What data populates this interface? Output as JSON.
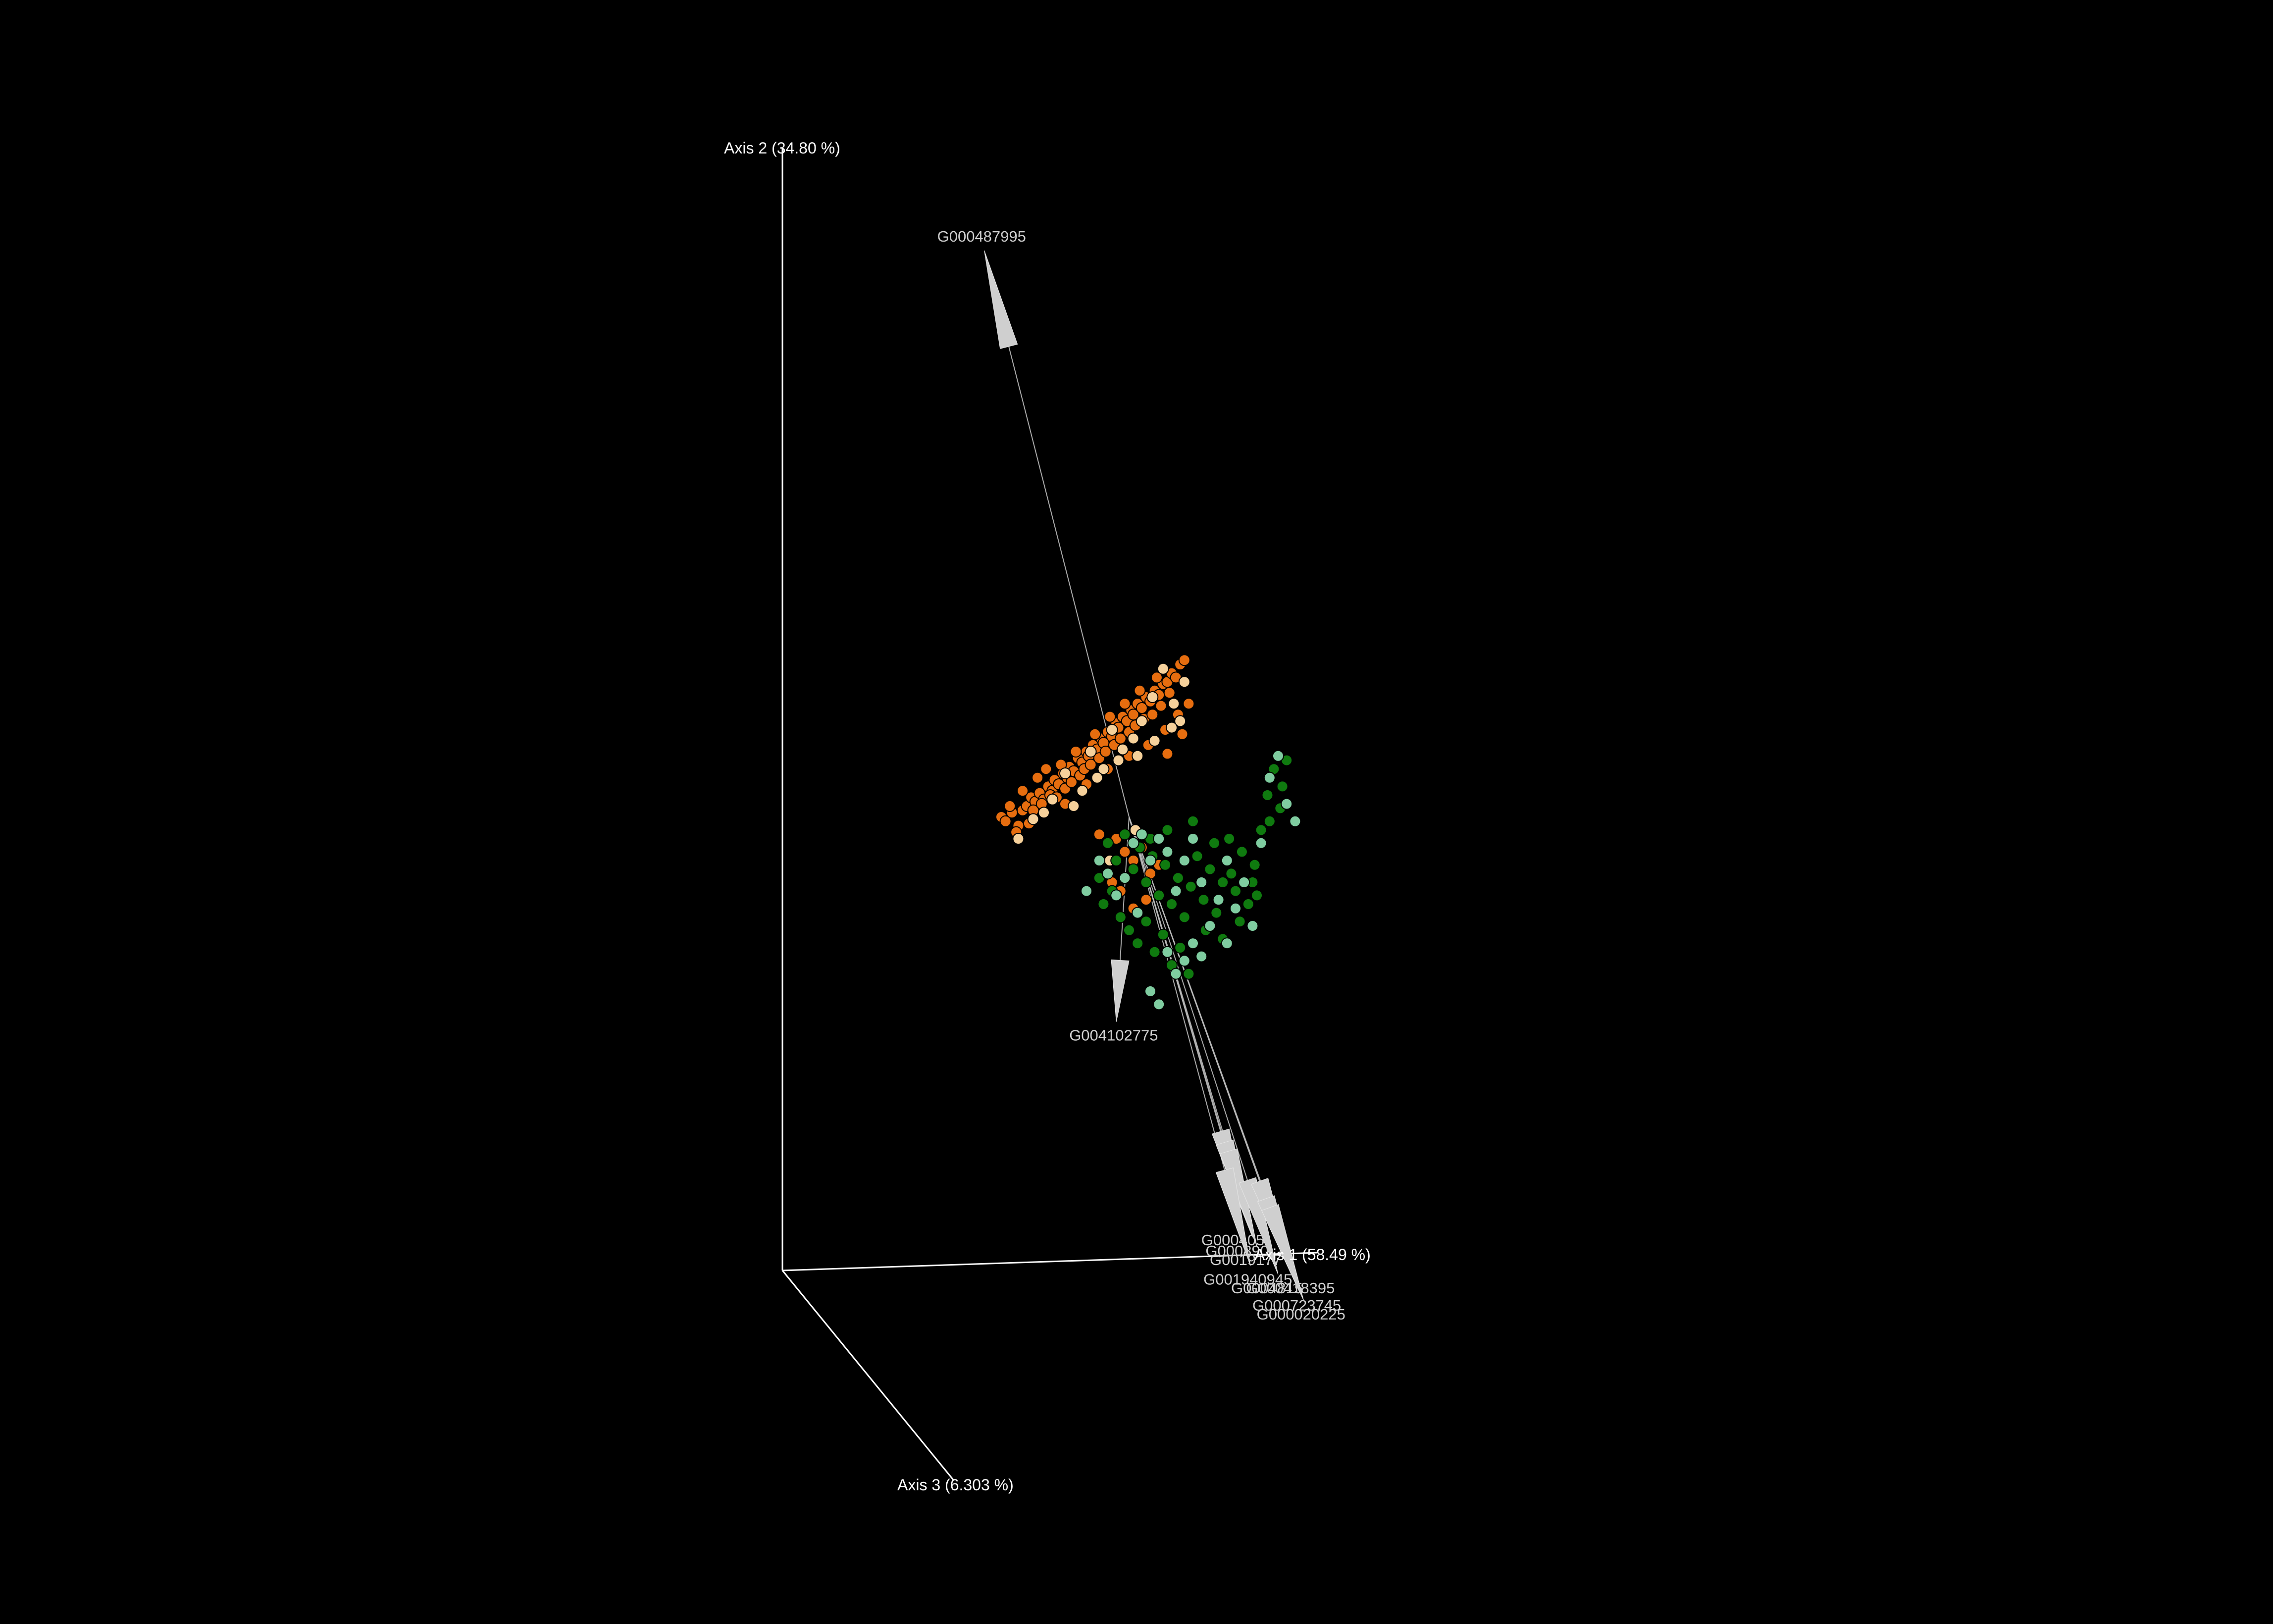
{
  "chart_data": {
    "type": "scatter",
    "subtype": "3d-pcoa-biplot",
    "title": "",
    "background": "#000000",
    "axes": {
      "x": "Axis 1 (58.49 %)",
      "y": "Axis 2 (34.80 %)",
      "z": "Axis 3 (6.303 %)"
    },
    "series": [
      {
        "color": "#e66d0f",
        "points": [
          [
            -0.6,
            0.0
          ],
          [
            -0.58,
            -0.02
          ],
          [
            -0.55,
            0.02
          ],
          [
            -0.52,
            -0.04
          ],
          [
            -0.5,
            0.03
          ],
          [
            -0.48,
            0.05
          ],
          [
            -0.46,
            0.09
          ],
          [
            -0.44,
            0.07
          ],
          [
            -0.42,
            0.11
          ],
          [
            -0.4,
            0.08
          ],
          [
            -0.38,
            0.14
          ],
          [
            -0.36,
            0.12
          ],
          [
            -0.35,
            0.17
          ],
          [
            -0.33,
            0.15
          ],
          [
            -0.31,
            0.2
          ],
          [
            -0.29,
            0.18
          ],
          [
            -0.28,
            0.23
          ],
          [
            -0.26,
            0.21
          ],
          [
            -0.24,
            0.27
          ],
          [
            -0.22,
            0.25
          ],
          [
            -0.2,
            0.3
          ],
          [
            -0.19,
            0.28
          ],
          [
            -0.17,
            0.33
          ],
          [
            -0.15,
            0.31
          ],
          [
            -0.13,
            0.36
          ],
          [
            -0.12,
            0.34
          ],
          [
            -0.1,
            0.39
          ],
          [
            -0.08,
            0.37
          ],
          [
            -0.06,
            0.43
          ],
          [
            -0.05,
            0.41
          ],
          [
            -0.03,
            0.46
          ],
          [
            -0.01,
            0.44
          ],
          [
            0.01,
            0.49
          ],
          [
            0.02,
            0.47
          ],
          [
            0.04,
            0.52
          ],
          [
            0.06,
            0.5
          ],
          [
            0.08,
            0.55
          ],
          [
            0.1,
            0.53
          ],
          [
            0.12,
            0.58
          ],
          [
            0.14,
            0.56
          ],
          [
            0.16,
            0.61
          ],
          [
            0.18,
            0.62
          ],
          [
            0.2,
            0.66
          ],
          [
            0.22,
            0.64
          ],
          [
            0.24,
            0.7
          ],
          [
            0.26,
            0.72
          ],
          [
            -0.45,
            0.03
          ],
          [
            -0.41,
            0.06
          ],
          [
            -0.37,
            0.1
          ],
          [
            -0.34,
            0.09
          ],
          [
            -0.3,
            0.13
          ],
          [
            -0.27,
            0.16
          ],
          [
            -0.23,
            0.19
          ],
          [
            -0.21,
            0.22
          ],
          [
            -0.18,
            0.24
          ],
          [
            -0.14,
            0.27
          ],
          [
            -0.11,
            0.3
          ],
          [
            -0.07,
            0.33
          ],
          [
            -0.04,
            0.36
          ],
          [
            0.0,
            0.39
          ],
          [
            0.03,
            0.42
          ],
          [
            0.07,
            0.45
          ],
          [
            0.11,
            0.47
          ],
          [
            0.15,
            0.51
          ],
          [
            -0.32,
            0.24
          ],
          [
            -0.25,
            0.3
          ],
          [
            -0.16,
            0.38
          ],
          [
            -0.09,
            0.46
          ],
          [
            -0.02,
            0.52
          ],
          [
            0.05,
            0.58
          ],
          [
            0.13,
            0.64
          ],
          [
            0.19,
            0.57
          ],
          [
            -0.5,
            0.12
          ],
          [
            -0.43,
            0.18
          ],
          [
            -0.39,
            0.22
          ],
          [
            -0.3,
            0.06
          ],
          [
            -0.2,
            0.15
          ],
          [
            -0.1,
            0.22
          ],
          [
            0.0,
            0.28
          ],
          [
            0.09,
            0.33
          ],
          [
            0.17,
            0.4
          ],
          [
            0.23,
            0.47
          ],
          [
            0.28,
            0.52
          ],
          [
            0.25,
            0.38
          ],
          [
            0.18,
            0.29
          ],
          [
            -0.14,
            -0.08
          ],
          [
            -0.1,
            -0.12
          ],
          [
            -0.06,
            -0.1
          ],
          [
            -0.02,
            -0.16
          ],
          [
            0.02,
            -0.2
          ],
          [
            0.06,
            -0.14
          ],
          [
            0.1,
            -0.26
          ],
          [
            0.14,
            -0.22
          ],
          [
            -0.08,
            -0.3
          ],
          [
            -0.04,
            -0.34
          ],
          [
            0.02,
            -0.42
          ],
          [
            0.08,
            -0.38
          ],
          [
            -0.56,
            0.05
          ],
          [
            -0.53,
            -0.07
          ],
          [
            -0.47,
            -0.03
          ]
        ]
      },
      {
        "color": "#f6d19b",
        "points": [
          [
            -0.36,
            0.08
          ],
          [
            -0.3,
            0.2
          ],
          [
            -0.22,
            0.12
          ],
          [
            -0.18,
            0.3
          ],
          [
            -0.12,
            0.22
          ],
          [
            -0.08,
            0.4
          ],
          [
            -0.03,
            0.31
          ],
          [
            0.02,
            0.36
          ],
          [
            0.06,
            0.44
          ],
          [
            0.11,
            0.55
          ],
          [
            0.16,
            0.68
          ],
          [
            0.21,
            0.52
          ],
          [
            0.26,
            0.62
          ],
          [
            0.24,
            0.44
          ],
          [
            -0.45,
            -0.01
          ],
          [
            -0.4,
            0.02
          ],
          [
            -0.26,
            0.05
          ],
          [
            -0.15,
            0.18
          ],
          [
            -0.05,
            0.26
          ],
          [
            0.04,
            0.28
          ],
          [
            0.12,
            0.35
          ],
          [
            0.2,
            0.41
          ],
          [
            -0.52,
            -0.1
          ],
          [
            -0.09,
            -0.2
          ],
          [
            0.03,
            -0.06
          ]
        ]
      },
      {
        "color": "#0f7a0f",
        "points": [
          [
            -0.1,
            -0.12
          ],
          [
            -0.06,
            -0.2
          ],
          [
            -0.02,
            -0.08
          ],
          [
            0.02,
            -0.24
          ],
          [
            0.05,
            -0.14
          ],
          [
            0.08,
            -0.3
          ],
          [
            0.11,
            -0.18
          ],
          [
            0.14,
            -0.36
          ],
          [
            0.17,
            -0.22
          ],
          [
            0.2,
            -0.4
          ],
          [
            0.23,
            -0.28
          ],
          [
            0.26,
            -0.46
          ],
          [
            0.29,
            -0.32
          ],
          [
            0.32,
            -0.18
          ],
          [
            0.35,
            -0.38
          ],
          [
            0.38,
            -0.24
          ],
          [
            0.41,
            -0.44
          ],
          [
            0.44,
            -0.3
          ],
          [
            0.47,
            -0.1
          ],
          [
            0.5,
            -0.34
          ],
          [
            0.53,
            -0.16
          ],
          [
            0.56,
            -0.4
          ],
          [
            0.59,
            -0.22
          ],
          [
            0.62,
            -0.06
          ],
          [
            0.65,
            0.1
          ],
          [
            0.68,
            0.22
          ],
          [
            0.71,
            0.04
          ],
          [
            0.74,
            0.26
          ],
          [
            -0.14,
            -0.28
          ],
          [
            -0.12,
            -0.4
          ],
          [
            -0.08,
            -0.34
          ],
          [
            -0.04,
            -0.46
          ],
          [
            0.0,
            -0.52
          ],
          [
            0.04,
            -0.58
          ],
          [
            0.08,
            -0.48
          ],
          [
            0.12,
            -0.62
          ],
          [
            0.16,
            -0.54
          ],
          [
            0.2,
            -0.68
          ],
          [
            0.24,
            -0.6
          ],
          [
            0.28,
            -0.72
          ],
          [
            0.1,
            -0.1
          ],
          [
            0.18,
            -0.06
          ],
          [
            0.3,
            -0.02
          ],
          [
            0.4,
            -0.12
          ],
          [
            0.48,
            -0.26
          ],
          [
            0.58,
            -0.3
          ],
          [
            0.36,
            -0.52
          ],
          [
            0.44,
            -0.56
          ],
          [
            0.52,
            -0.48
          ],
          [
            0.6,
            -0.36
          ],
          [
            0.66,
            -0.02
          ],
          [
            0.72,
            0.14
          ]
        ]
      },
      {
        "color": "#7fcca0",
        "points": [
          [
            -0.2,
            -0.34
          ],
          [
            -0.14,
            -0.2
          ],
          [
            -0.1,
            -0.26
          ],
          [
            -0.06,
            -0.36
          ],
          [
            -0.02,
            -0.28
          ],
          [
            0.02,
            -0.12
          ],
          [
            0.06,
            -0.08
          ],
          [
            0.1,
            -0.2
          ],
          [
            0.14,
            -0.1
          ],
          [
            0.18,
            -0.16
          ],
          [
            0.22,
            -0.34
          ],
          [
            0.26,
            -0.2
          ],
          [
            0.3,
            -0.1
          ],
          [
            0.34,
            -0.3
          ],
          [
            0.38,
            -0.5
          ],
          [
            0.42,
            -0.38
          ],
          [
            0.46,
            -0.2
          ],
          [
            0.5,
            -0.42
          ],
          [
            0.54,
            -0.3
          ],
          [
            0.58,
            -0.5
          ],
          [
            0.62,
            -0.12
          ],
          [
            0.66,
            0.18
          ],
          [
            0.7,
            0.28
          ],
          [
            0.74,
            0.06
          ],
          [
            0.78,
            -0.02
          ],
          [
            0.18,
            -0.62
          ],
          [
            0.22,
            -0.72
          ],
          [
            0.26,
            -0.66
          ],
          [
            0.3,
            -0.58
          ],
          [
            0.1,
            -0.8
          ],
          [
            0.14,
            -0.86
          ],
          [
            0.34,
            -0.64
          ],
          [
            0.46,
            -0.58
          ],
          [
            0.04,
            -0.44
          ]
        ]
      }
    ],
    "arrows": [
      {
        "label": "G000487995",
        "dx": -0.68,
        "dy": 2.6
      },
      {
        "label": "G004102775",
        "dx": -0.06,
        "dy": -0.94
      },
      {
        "label": "G000405",
        "dx": 0.56,
        "dy": -1.88
      },
      {
        "label": "G000890",
        "dx": 0.58,
        "dy": -1.93
      },
      {
        "label": "G0019177",
        "dx": 0.6,
        "dy": -1.97
      },
      {
        "label": "G001940945",
        "dx": 0.57,
        "dy": -2.06
      },
      {
        "label": "G0004815",
        "dx": 0.7,
        "dy": -2.1
      },
      {
        "label": "G000418395",
        "dx": 0.77,
        "dy": -2.1
      },
      {
        "label": "G000723745",
        "dx": 0.8,
        "dy": -2.18
      },
      {
        "label": "G000020225",
        "dx": 0.82,
        "dy": -2.22
      }
    ]
  }
}
